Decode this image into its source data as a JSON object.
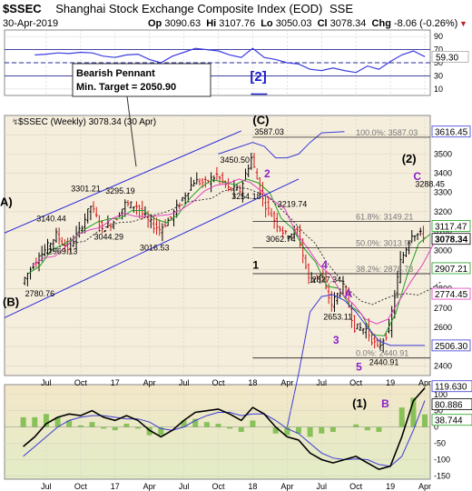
{
  "header": {
    "symbol": "$SSEC",
    "company": "Shanghai Stock Exchange Composite Index (EOD)",
    "exchange": "SSE",
    "date": "30-Apr-2019",
    "open_label": "Op",
    "open": "3090.63",
    "high_label": "Hi",
    "high": "3107.76",
    "low_label": "Lo",
    "low": "3050.03",
    "close_label": "Cl",
    "close": "3078.34",
    "change_label": "Chg",
    "change": "-8.06 (-0.26%)"
  },
  "colors": {
    "price_bg": "#f6eedd",
    "rsi_line": "#3c3ce0",
    "up": "#000000",
    "down": "#d11818",
    "ma_green": "#1f9e1f",
    "ma_magenta": "#e040c0",
    "ma_blue": "#3b3bd6",
    "ma_black_dotted": "#222222",
    "wave_purple": "#8a20c8",
    "channel_blue": "#2a2ad8",
    "histogram": "#7dbd4c"
  },
  "chart_data": [
    {
      "type": "line",
      "name": "RSI",
      "ylim": [
        0,
        100
      ],
      "ticks": [
        10,
        30,
        50,
        70,
        90
      ],
      "levels": [
        30,
        50,
        70
      ],
      "last_value": "59.30",
      "label": "[2]",
      "x": [
        "2016-06",
        "2016-07",
        "2016-08",
        "2016-09",
        "2016-10",
        "2016-11",
        "2016-12",
        "2017-01",
        "2017-02",
        "2017-03",
        "2017-04",
        "2017-05",
        "2017-06",
        "2017-07",
        "2017-08",
        "2017-09",
        "2017-10",
        "2017-11",
        "2017-12",
        "2018-01",
        "2018-02",
        "2018-03",
        "2018-04",
        "2018-05",
        "2018-06",
        "2018-07",
        "2018-08",
        "2018-09",
        "2018-10",
        "2018-11",
        "2018-12",
        "2019-01",
        "2019-02",
        "2019-03",
        "2019-04"
      ],
      "values": [
        62,
        63,
        65,
        64,
        66,
        65,
        60,
        58,
        62,
        63,
        55,
        50,
        60,
        66,
        72,
        70,
        68,
        62,
        58,
        72,
        58,
        55,
        50,
        48,
        40,
        38,
        42,
        38,
        35,
        45,
        40,
        52,
        62,
        68,
        59.3
      ]
    },
    {
      "type": "candlestick",
      "title": "$SSEC (Weekly) 3078.34 (30 Apr)",
      "ylim": [
        2350,
        3700
      ],
      "price_ticks": [
        2400,
        2500,
        2600,
        2700,
        2800,
        2900,
        3000,
        3100,
        3200,
        3300,
        3400,
        3500,
        3600
      ],
      "x_ticks": [
        "Jul",
        "Oct",
        "17",
        "Apr",
        "Jul",
        "Oct",
        "18",
        "Apr",
        "Jul",
        "Oct",
        "19",
        "Apr"
      ],
      "close_series": [
        {
          "t": "2016-05",
          "v": 2830
        },
        {
          "t": "2016-06",
          "v": 2930
        },
        {
          "t": "2016-07",
          "v": 3000
        },
        {
          "t": "2016-08",
          "v": 3080
        },
        {
          "t": "2016-09",
          "v": 3010
        },
        {
          "t": "2016-10",
          "v": 3100
        },
        {
          "t": "2016-11",
          "v": 3230
        },
        {
          "t": "2016-12",
          "v": 3110
        },
        {
          "t": "2017-01",
          "v": 3150
        },
        {
          "t": "2017-02",
          "v": 3240
        },
        {
          "t": "2017-03",
          "v": 3230
        },
        {
          "t": "2017-04",
          "v": 3150
        },
        {
          "t": "2017-05",
          "v": 3110
        },
        {
          "t": "2017-06",
          "v": 3170
        },
        {
          "t": "2017-07",
          "v": 3270
        },
        {
          "t": "2017-08",
          "v": 3360
        },
        {
          "t": "2017-09",
          "v": 3350
        },
        {
          "t": "2017-10",
          "v": 3390
        },
        {
          "t": "2017-11",
          "v": 3320
        },
        {
          "t": "2017-12",
          "v": 3310
        },
        {
          "t": "2018-01",
          "v": 3480
        },
        {
          "t": "2018-02",
          "v": 3260
        },
        {
          "t": "2018-03",
          "v": 3160
        },
        {
          "t": "2018-04",
          "v": 3080
        },
        {
          "t": "2018-05",
          "v": 3100
        },
        {
          "t": "2018-06",
          "v": 2850
        },
        {
          "t": "2018-07",
          "v": 2870
        },
        {
          "t": "2018-08",
          "v": 2720
        },
        {
          "t": "2018-09",
          "v": 2820
        },
        {
          "t": "2018-10",
          "v": 2600
        },
        {
          "t": "2018-11",
          "v": 2590
        },
        {
          "t": "2018-12",
          "v": 2490
        },
        {
          "t": "2019-01",
          "v": 2590
        },
        {
          "t": "2019-02",
          "v": 2940
        },
        {
          "t": "2019-03",
          "v": 3090
        },
        {
          "t": "2019-04",
          "v": 3078.34
        }
      ],
      "price_annotations": [
        {
          "text": "2780.76",
          "t": "2016-05",
          "v": 2760
        },
        {
          "text": "3140.44",
          "t": "2016-06",
          "v": 3150
        },
        {
          "text": "2969.13",
          "t": "2016-07",
          "v": 2980
        },
        {
          "text": "3301.21",
          "t": "2016-09",
          "v": 3305
        },
        {
          "text": "3044.29",
          "t": "2016-11",
          "v": 3055
        },
        {
          "text": "3295.19",
          "t": "2016-12",
          "v": 3295
        },
        {
          "text": "3016.53",
          "t": "2017-03",
          "v": 3000
        },
        {
          "text": "3450.50",
          "t": "2017-10",
          "v": 3455
        },
        {
          "text": "3254.18",
          "t": "2017-11",
          "v": 3265
        },
        {
          "text": "3587.03",
          "t": "2018-01",
          "v": 3600
        },
        {
          "text": "3062.74",
          "t": "2018-02",
          "v": 3045
        },
        {
          "text": "3219.74",
          "t": "2018-03",
          "v": 3225
        },
        {
          "text": "2827.34",
          "t": "2018-06",
          "v": 2835
        },
        {
          "text": "2653.11",
          "t": "2018-07",
          "v": 2640
        },
        {
          "text": "2440.91",
          "t": "2018-11",
          "v": 2405
        },
        {
          "text": "3288.45",
          "t": "2019-03",
          "v": 3330
        }
      ],
      "fib_levels": [
        {
          "label": "100.0%: 3587.03",
          "v": 3587.03
        },
        {
          "label": "61.8%: 3149.21",
          "v": 3149.21
        },
        {
          "label": "50.0%: 3013.97",
          "v": 3013.97
        },
        {
          "label": "38.2%: 2878.73",
          "v": 2878.73
        },
        {
          "label": "0.0%: 2440.91",
          "v": 2440.91
        }
      ],
      "wave_labels": [
        {
          "text": "A)",
          "t": "2016-04",
          "v": 3230
        },
        {
          "text": "(B)",
          "t": "2016-04",
          "v": 2710
        },
        {
          "text": "(C)",
          "t": "2018-01",
          "v": 3655
        },
        {
          "text": "2",
          "t": "2018-02",
          "v": 3380
        },
        {
          "text": "1",
          "t": "2018-01",
          "v": 2905
        },
        {
          "text": "4",
          "t": "2018-07",
          "v": 2905
        },
        {
          "text": "A",
          "t": "2018-09",
          "v": 2755
        },
        {
          "text": "3",
          "t": "2018-08",
          "v": 2515
        },
        {
          "text": "5",
          "t": "2018-10",
          "v": 2375
        },
        {
          "text": "(2)",
          "t": "2019-02",
          "v": 3455
        },
        {
          "text": "C",
          "t": "2019-03",
          "v": 3365
        }
      ],
      "callout": {
        "line1": "Bearish Pennant",
        "line2": "Min. Target = 2050.90"
      },
      "right_labels": [
        {
          "text": "3616.45",
          "color": "#3b3bd6"
        },
        {
          "text": "3117.47",
          "color": "#1f9e1f"
        },
        {
          "text": "3078.34",
          "color": "#000000"
        },
        {
          "text": "2907.21",
          "color": "#1f9e1f"
        },
        {
          "text": "2774.45",
          "color": "#e040c0"
        },
        {
          "text": "2506.30",
          "color": "#3b3bd6"
        }
      ]
    },
    {
      "type": "line",
      "name": "Oscillator",
      "ylim": [
        -160,
        130
      ],
      "ticks": [
        -150,
        -100,
        -50,
        0,
        50,
        100
      ],
      "right_labels": [
        "119.630",
        "80.886",
        "38.744"
      ],
      "annotations": [
        "(1)",
        "B"
      ],
      "x": [
        "2016-05",
        "2016-06",
        "2016-07",
        "2016-08",
        "2016-09",
        "2016-10",
        "2016-11",
        "2016-12",
        "2017-01",
        "2017-02",
        "2017-03",
        "2017-04",
        "2017-05",
        "2017-06",
        "2017-07",
        "2017-08",
        "2017-09",
        "2017-10",
        "2017-11",
        "2017-12",
        "2018-01",
        "2018-02",
        "2018-03",
        "2018-04",
        "2018-05",
        "2018-06",
        "2018-07",
        "2018-08",
        "2018-09",
        "2018-10",
        "2018-11",
        "2018-12",
        "2019-01",
        "2019-02",
        "2019-03",
        "2019-04"
      ],
      "series": [
        {
          "name": "fast",
          "values": [
            -60,
            -30,
            10,
            30,
            40,
            35,
            50,
            30,
            20,
            35,
            20,
            -10,
            -30,
            -10,
            20,
            45,
            50,
            55,
            40,
            20,
            60,
            40,
            0,
            -30,
            -40,
            -80,
            -100,
            -110,
            -100,
            -90,
            -110,
            -130,
            -120,
            -30,
            80,
            119.63
          ]
        },
        {
          "name": "slow",
          "values": [
            -90,
            -60,
            -30,
            0,
            20,
            30,
            35,
            35,
            30,
            25,
            25,
            15,
            -5,
            -10,
            0,
            20,
            35,
            45,
            45,
            35,
            40,
            40,
            20,
            -5,
            -20,
            -50,
            -80,
            -95,
            -100,
            -98,
            -100,
            -115,
            -120,
            -90,
            -10,
            80.886
          ]
        },
        {
          "name": "histogram",
          "values": [
            30,
            30,
            40,
            30,
            20,
            5,
            15,
            -5,
            -10,
            10,
            -5,
            -25,
            -25,
            0,
            20,
            25,
            15,
            10,
            -5,
            -15,
            20,
            0,
            -20,
            -25,
            -20,
            -30,
            -20,
            -15,
            0,
            8,
            -10,
            -15,
            0,
            60,
            90,
            38.744
          ]
        }
      ]
    }
  ]
}
